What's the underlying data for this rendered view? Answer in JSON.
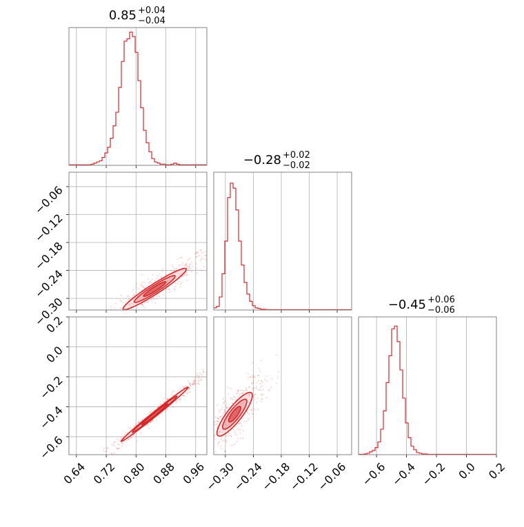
{
  "colors": {
    "accent": "#d62728",
    "fill_light": "#f4cfd0",
    "fill_mid": "#e8a5a7",
    "grid": "#b0b0b0",
    "frame": "#808080"
  },
  "chart_data": [
    {
      "type": "histogram",
      "panel": "p1-marginal",
      "title": {
        "main": "0.85",
        "sup": "+0.04",
        "sub": "−0.04"
      },
      "xlim": [
        0.62,
        0.99
      ],
      "bins": {
        "start": 0.62,
        "width": 0.0074
      },
      "values": [
        0.5,
        0.5,
        0.5,
        0.5,
        0.5,
        0.5,
        0.5,
        0.5,
        1,
        2,
        3,
        4,
        7,
        11,
        16,
        24,
        35,
        47,
        69,
        92,
        110,
        112,
        118,
        114,
        100,
        75,
        51,
        31,
        20,
        12,
        6,
        3,
        2,
        1,
        1,
        0.5,
        0.5,
        1,
        2,
        1,
        0.5,
        0.5,
        0.5,
        0.5,
        0.5,
        0.5,
        0.5,
        0.5,
        0.5,
        0.5
      ],
      "ymax": 122,
      "xticks": [
        0.64,
        0.72,
        0.8,
        0.88,
        0.96
      ],
      "xtick_labels": [
        "0.64",
        "0.72",
        "0.80",
        "0.88",
        "0.96"
      ],
      "grid": true
    },
    {
      "type": "scatter",
      "panel": "p1-vs-p2",
      "xlim": [
        0.62,
        0.99
      ],
      "ylim": [
        -0.325,
        -0.029
      ],
      "yticks": [
        -0.06,
        -0.12,
        -0.18,
        -0.24,
        -0.3
      ],
      "ytick_labels": [
        "−0.06",
        "−0.12",
        "−0.18",
        "−0.24",
        "−0.30"
      ],
      "center": [
        0.85,
        -0.28
      ],
      "slope": 0.5,
      "contours": [
        {
          "level": "outer",
          "half_width": [
            0.085,
            0.013
          ]
        },
        {
          "level": "mid",
          "half_width": [
            0.055,
            0.009
          ]
        },
        {
          "level": "inner",
          "half_width": [
            0.03,
            0.005
          ]
        }
      ],
      "grid": true
    },
    {
      "type": "histogram",
      "panel": "p2-marginal",
      "title": {
        "main": "−0.28",
        "sup": "+0.02",
        "sub": "−0.02"
      },
      "xlim": [
        -0.325,
        -0.029
      ],
      "bins": {
        "start": -0.325,
        "width": 0.00592
      },
      "values": [
        3,
        5,
        18,
        50,
        95,
        155,
        175,
        168,
        138,
        95,
        62,
        38,
        22,
        12,
        6,
        3,
        2,
        1,
        1,
        0.5,
        0.5,
        0.5,
        0.5,
        0.5,
        0.5,
        0.5,
        0.5,
        0.5,
        0.5,
        0.5,
        0.5,
        0.5,
        0.5,
        0.5,
        0.5,
        0.5,
        0.5,
        0.5,
        0.5,
        0.5,
        0.5,
        0.5,
        0.5,
        0.5,
        0.5,
        0.5,
        0.5,
        0.5,
        0.5,
        0.5
      ],
      "ymax": 190,
      "xticks": [
        -0.3,
        -0.24,
        -0.18,
        -0.12,
        -0.06
      ],
      "xtick_labels": [
        "−0.30",
        "−0.24",
        "−0.18",
        "−0.12",
        "−0.06"
      ],
      "grid": true
    },
    {
      "type": "scatter",
      "panel": "p1-vs-p3",
      "xlim": [
        0.62,
        0.99
      ],
      "ylim": [
        -0.72,
        0.2
      ],
      "yticks": [
        0.2,
        0.0,
        -0.2,
        -0.4,
        -0.6
      ],
      "ytick_labels": [
        "0.2",
        "0.0",
        "−0.2",
        "−0.4",
        "−0.6"
      ],
      "center": [
        0.85,
        -0.45
      ],
      "slope": 2.0,
      "contours": [
        {
          "level": "outer",
          "half_width": [
            0.09,
            0.02
          ]
        },
        {
          "level": "mid",
          "half_width": [
            0.06,
            0.014
          ]
        },
        {
          "level": "inner",
          "half_width": [
            0.035,
            0.009
          ]
        }
      ],
      "grid": true
    },
    {
      "type": "scatter",
      "panel": "p2-vs-p3",
      "xlim": [
        -0.325,
        -0.029
      ],
      "ylim": [
        -0.72,
        0.2
      ],
      "center": [
        -0.28,
        -0.45
      ],
      "slope": 3.3,
      "contours": [
        {
          "level": "outer",
          "half_width": [
            0.038,
            0.075
          ]
        },
        {
          "level": "mid",
          "half_width": [
            0.026,
            0.052
          ]
        },
        {
          "level": "inner",
          "half_width": [
            0.013,
            0.03
          ]
        }
      ],
      "grid": true
    },
    {
      "type": "histogram",
      "panel": "p3-marginal",
      "title": {
        "main": "−0.45",
        "sup": "+0.06",
        "sub": "−0.06"
      },
      "xlim": [
        -0.72,
        0.2
      ],
      "bins": {
        "start": -0.72,
        "width": 0.0184
      },
      "values": [
        0.5,
        0.5,
        1,
        2,
        4,
        6,
        10,
        18,
        36,
        62,
        102,
        140,
        178,
        182,
        160,
        120,
        80,
        45,
        24,
        12,
        7,
        3,
        2,
        1,
        1,
        0.5,
        0.5,
        0.5,
        0.5,
        0.5,
        0.5,
        0.5,
        0.5,
        0.5,
        0.5,
        0.5,
        0.5,
        0.5,
        0.5,
        0.5,
        0.5,
        0.5,
        0.5,
        0.5,
        0.5,
        0.5,
        0.5,
        0.5,
        0.5,
        0.5
      ],
      "ymax": 195,
      "xticks": [
        -0.6,
        -0.4,
        -0.2,
        0.0,
        0.2
      ],
      "xtick_labels": [
        "−0.6",
        "−0.4",
        "−0.2",
        "0.0",
        "0.2"
      ],
      "grid": true
    }
  ]
}
